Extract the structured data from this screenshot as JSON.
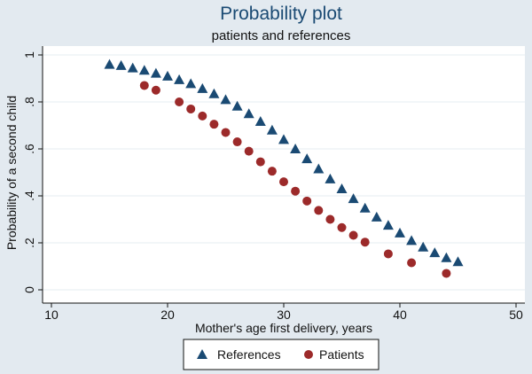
{
  "chart_data": {
    "type": "scatter",
    "title": "Probability plot",
    "subtitle": "patients and references",
    "xlabel": "Mother's age first delivery, years",
    "ylabel": "Probability of a second child",
    "xlim": [
      10,
      50
    ],
    "ylim": [
      0,
      1
    ],
    "x_ticks": [
      10,
      20,
      30,
      40,
      50
    ],
    "x_tick_labels": [
      "10",
      "20",
      "30",
      "40",
      "50"
    ],
    "y_ticks": [
      0,
      0.2,
      0.4,
      0.6,
      0.8,
      1
    ],
    "y_tick_labels": [
      "0",
      ".2",
      ".4",
      ".6",
      ".8",
      "1"
    ],
    "grid": "horizontal",
    "legend_position": "bottom",
    "series": [
      {
        "name": "References",
        "marker": "triangle",
        "color": "#1a4a73",
        "points": [
          [
            15,
            0.96
          ],
          [
            16,
            0.955
          ],
          [
            17,
            0.945
          ],
          [
            18,
            0.935
          ],
          [
            19,
            0.922
          ],
          [
            20,
            0.91
          ],
          [
            21,
            0.895
          ],
          [
            22,
            0.878
          ],
          [
            23,
            0.857
          ],
          [
            24,
            0.835
          ],
          [
            25,
            0.81
          ],
          [
            26,
            0.782
          ],
          [
            27,
            0.75
          ],
          [
            28,
            0.717
          ],
          [
            29,
            0.68
          ],
          [
            30,
            0.64
          ],
          [
            31,
            0.6
          ],
          [
            32,
            0.558
          ],
          [
            33,
            0.515
          ],
          [
            34,
            0.472
          ],
          [
            35,
            0.43
          ],
          [
            36,
            0.388
          ],
          [
            37,
            0.348
          ],
          [
            38,
            0.31
          ],
          [
            39,
            0.275
          ],
          [
            40,
            0.242
          ],
          [
            41,
            0.21
          ],
          [
            42,
            0.182
          ],
          [
            43,
            0.158
          ],
          [
            44,
            0.137
          ],
          [
            45,
            0.12
          ]
        ]
      },
      {
        "name": "Patients",
        "marker": "circle",
        "color": "#9c2a2a",
        "points": [
          [
            18,
            0.87
          ],
          [
            19,
            0.85
          ],
          [
            21,
            0.8
          ],
          [
            22,
            0.77
          ],
          [
            23,
            0.74
          ],
          [
            24,
            0.705
          ],
          [
            25,
            0.67
          ],
          [
            26,
            0.63
          ],
          [
            27,
            0.59
          ],
          [
            28,
            0.545
          ],
          [
            29,
            0.505
          ],
          [
            30,
            0.46
          ],
          [
            31,
            0.42
          ],
          [
            32,
            0.378
          ],
          [
            33,
            0.338
          ],
          [
            34,
            0.3
          ],
          [
            35,
            0.265
          ],
          [
            36,
            0.232
          ],
          [
            37,
            0.203
          ],
          [
            39,
            0.153
          ],
          [
            41,
            0.115
          ],
          [
            44,
            0.07
          ]
        ]
      }
    ]
  }
}
